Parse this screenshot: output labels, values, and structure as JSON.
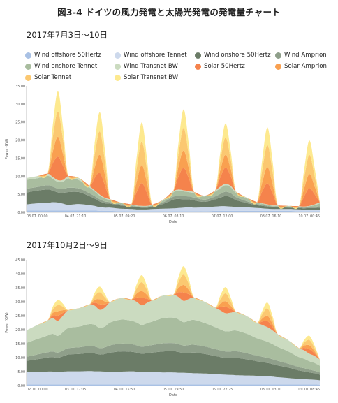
{
  "title": "図3-4  ドイツの風力発電と太陽光発電の発電量チャート",
  "legend": [
    {
      "name": "Wind offshore 50Hertz",
      "color": "#a9c1e4"
    },
    {
      "name": "Wind offshore Tennet",
      "color": "#cdd9ec"
    },
    {
      "name": "Wind onshore 50Hertz",
      "color": "#6b7c67"
    },
    {
      "name": "Wind Amprion",
      "color": "#8f9f8a"
    },
    {
      "name": "Wind onshore Tennet",
      "color": "#a9bd9f"
    },
    {
      "name": "Wind Transnet BW",
      "color": "#cbdbc0"
    },
    {
      "name": "Solar 50Hertz",
      "color": "#f5834c"
    },
    {
      "name": "Solar Amprion",
      "color": "#f9a050"
    },
    {
      "name": "Solar Tennet",
      "color": "#fbc871"
    },
    {
      "name": "Solar Transnet BW",
      "color": "#fde98f"
    }
  ],
  "chart_data": [
    {
      "type": "area",
      "stacked": true,
      "subtitle": "2017年7月3日〜10日",
      "xlabel": "Date",
      "ylabel": "Power (GW)",
      "ylim": [
        0,
        35
      ],
      "yticks": [
        "0.00",
        "5.00",
        "10.00",
        "15.00",
        "20.00",
        "25.00",
        "30.00",
        "35.00"
      ],
      "xticks": [
        "03.07. 00:00",
        "04.07. 21:10",
        "05.07. 09:20",
        "06.07. 03:10",
        "07.07. 12:00",
        "08.07. 16:10",
        "10.07. 00:45"
      ],
      "x": [
        0,
        0.5,
        1,
        1.25,
        1.5,
        1.75,
        2,
        2.5,
        3,
        3.25,
        3.5,
        3.75,
        4,
        4.5,
        5,
        5.25,
        5.5,
        5.75,
        6,
        6.5,
        7,
        7.25,
        7.5,
        7.75,
        8,
        8.5,
        9,
        9.25,
        9.5,
        9.75,
        10,
        10.5,
        11,
        11.25,
        11.5,
        11.75,
        12,
        12.5,
        13,
        13.25,
        13.5,
        13.75,
        14
      ],
      "series": [
        {
          "name": "Wind offshore 50Hertz",
          "values": [
            0.5,
            0.5,
            0.5,
            0.5,
            0.5,
            0.5,
            0.5,
            0.5,
            0.5,
            0.5,
            0.4,
            0.4,
            0.4,
            0.3,
            0.3,
            0.3,
            0.3,
            0.3,
            0.3,
            0.3,
            0.3,
            0.3,
            0.3,
            0.3,
            0.3,
            0.3,
            0.4,
            0.4,
            0.4,
            0.4,
            0.4,
            0.4,
            0.4,
            0.4,
            0.4,
            0.4,
            0.4,
            0.4,
            0.3,
            0.3,
            0.3,
            0.3,
            0.3
          ]
        },
        {
          "name": "Wind offshore Tennet",
          "values": [
            1.7,
            2.0,
            2.1,
            2.3,
            2.2,
            1.9,
            1.6,
            1.8,
            1.5,
            1.3,
            1.0,
            0.9,
            0.9,
            0.7,
            0.6,
            0.5,
            0.5,
            0.5,
            0.6,
            0.7,
            0.8,
            0.9,
            1.0,
            1.1,
            1.0,
            1.1,
            1.2,
            1.3,
            1.3,
            1.2,
            1.1,
            1.0,
            0.8,
            0.7,
            0.6,
            0.5,
            0.5,
            0.5,
            0.5,
            0.4,
            0.4,
            0.4,
            0.4
          ]
        },
        {
          "name": "Wind onshore 50Hertz",
          "values": [
            3.3,
            3.5,
            3.7,
            3.2,
            2.8,
            3.0,
            3.5,
            3.3,
            2.5,
            2.0,
            1.6,
            1.2,
            1.1,
            0.9,
            0.7,
            0.6,
            0.5,
            0.5,
            0.7,
            1.3,
            2.4,
            2.5,
            2.3,
            2.2,
            2.0,
            1.5,
            2.0,
            2.4,
            2.8,
            2.6,
            1.9,
            1.2,
            0.8,
            0.7,
            0.6,
            0.5,
            0.5,
            0.4,
            0.4,
            0.4,
            0.5,
            0.5,
            0.6
          ]
        },
        {
          "name": "Wind Amprion",
          "values": [
            1.0,
            1.0,
            1.2,
            1.1,
            1.0,
            1.0,
            1.2,
            1.0,
            0.8,
            0.7,
            0.6,
            0.5,
            0.4,
            0.3,
            0.2,
            0.2,
            0.2,
            0.2,
            0.2,
            0.4,
            0.8,
            0.9,
            0.9,
            0.8,
            0.8,
            0.6,
            0.8,
            1.0,
            1.2,
            1.1,
            0.8,
            0.5,
            0.3,
            0.3,
            0.2,
            0.2,
            0.2,
            0.2,
            0.2,
            0.2,
            0.2,
            0.3,
            0.4
          ]
        },
        {
          "name": "Wind onshore Tennet",
          "values": [
            2.5,
            2.4,
            2.6,
            2.2,
            1.9,
            2.1,
            2.6,
            2.3,
            1.6,
            1.3,
            1.0,
            0.8,
            0.6,
            0.4,
            0.3,
            0.2,
            0.2,
            0.2,
            0.2,
            0.5,
            1.2,
            1.4,
            1.3,
            1.2,
            1.2,
            0.9,
            1.3,
            1.6,
            1.8,
            1.6,
            1.2,
            0.8,
            0.4,
            0.3,
            0.3,
            0.2,
            0.2,
            0.2,
            0.2,
            0.2,
            0.3,
            0.5,
            0.8
          ]
        },
        {
          "name": "Wind Transnet BW",
          "values": [
            0.5,
            0.6,
            0.6,
            0.5,
            0.5,
            0.5,
            0.6,
            0.6,
            0.4,
            0.3,
            0.3,
            0.2,
            0.2,
            0.1,
            0.1,
            0.1,
            0.1,
            0.1,
            0.1,
            0.2,
            0.3,
            0.3,
            0.3,
            0.3,
            0.3,
            0.2,
            0.3,
            0.4,
            0.4,
            0.4,
            0.3,
            0.2,
            0.1,
            0.1,
            0.1,
            0.1,
            0.1,
            0.1,
            0.1,
            0.1,
            0.1,
            0.2,
            0.3
          ]
        },
        {
          "name": "Solar 50Hertz",
          "values": [
            0,
            0,
            0,
            3.8,
            6.5,
            3.8,
            0,
            0,
            0,
            3.4,
            6.0,
            3.4,
            0,
            0,
            0,
            3.6,
            6.3,
            3.6,
            0,
            0,
            0,
            3.5,
            6.2,
            3.5,
            0,
            0,
            0,
            2.6,
            4.5,
            2.6,
            0,
            0,
            0,
            3.3,
            5.8,
            3.3,
            0,
            0,
            0,
            2.8,
            4.9,
            2.8,
            0
          ]
        },
        {
          "name": "Solar Amprion",
          "values": [
            0,
            0,
            0,
            3.1,
            5.5,
            3.1,
            0,
            0,
            0,
            2.8,
            5.0,
            2.8,
            0,
            0,
            0,
            2.8,
            5.0,
            2.8,
            0,
            0,
            0,
            2.7,
            4.8,
            2.7,
            0,
            0,
            0,
            2.0,
            3.5,
            2.0,
            0,
            0,
            0,
            2.5,
            4.5,
            2.5,
            0,
            0,
            0,
            2.2,
            3.9,
            2.2,
            0
          ]
        },
        {
          "name": "Solar Tennet",
          "values": [
            0,
            0,
            0,
            3.9,
            7.0,
            3.9,
            0,
            0,
            0,
            3.6,
            6.5,
            3.6,
            0,
            0,
            0,
            3.6,
            6.5,
            3.6,
            0,
            0,
            0,
            3.5,
            6.3,
            3.5,
            0,
            0,
            0,
            2.6,
            4.8,
            2.6,
            0,
            0,
            0,
            3.4,
            6.1,
            3.4,
            0,
            0,
            0,
            2.9,
            5.3,
            2.9,
            0
          ]
        },
        {
          "name": "Solar Transnet BW",
          "values": [
            0,
            0,
            0,
            3.3,
            5.6,
            3.3,
            0,
            0,
            0,
            3.0,
            5.3,
            3.0,
            0,
            0,
            0,
            3.0,
            5.3,
            3.0,
            0,
            0,
            0,
            3.0,
            5.1,
            3.0,
            0,
            0,
            0,
            2.3,
            3.9,
            2.3,
            0,
            0,
            0,
            2.8,
            4.9,
            2.8,
            0,
            0,
            0,
            2.3,
            4.0,
            2.3,
            0
          ]
        }
      ]
    },
    {
      "type": "area",
      "stacked": true,
      "subtitle": "2017年10月2日〜9日",
      "xlabel": "Date",
      "ylabel": "Power (GW)",
      "ylim": [
        0,
        45
      ],
      "yticks": [
        "0.00",
        "5.00",
        "10.00",
        "15.00",
        "20.00",
        "25.00",
        "30.00",
        "35.00",
        "40.00",
        "45.00"
      ],
      "xticks": [
        "02.10. 00:00",
        "03.10. 12:05",
        "04.10. 15:50",
        "05.10. 19:50",
        "06.10. 22:25",
        "08.10. 03:10",
        "09.10. 08:45"
      ],
      "x": [
        0,
        0.5,
        1,
        1.25,
        1.5,
        1.75,
        2,
        2.5,
        3,
        3.25,
        3.5,
        3.75,
        4,
        4.5,
        5,
        5.25,
        5.5,
        5.75,
        6,
        6.5,
        7,
        7.25,
        7.5,
        7.75,
        8,
        8.5,
        9,
        9.25,
        9.5,
        9.75,
        10,
        10.5,
        11,
        11.25,
        11.5,
        11.75,
        12,
        12.5,
        13,
        13.25,
        13.5,
        13.75,
        14
      ],
      "series": [
        {
          "name": "Wind offshore 50Hertz",
          "values": [
            0.4,
            0.4,
            0.4,
            0.4,
            0.4,
            0.4,
            0.4,
            0.4,
            0.4,
            0.4,
            0.4,
            0.4,
            0.4,
            0.4,
            0.4,
            0.4,
            0.4,
            0.4,
            0.4,
            0.4,
            0.4,
            0.4,
            0.4,
            0.4,
            0.4,
            0.4,
            0.4,
            0.4,
            0.4,
            0.4,
            0.4,
            0.4,
            0.4,
            0.4,
            0.4,
            0.4,
            0.4,
            0.4,
            0.4,
            0.4,
            0.4,
            0.4,
            0.3
          ]
        },
        {
          "name": "Wind offshore Tennet",
          "values": [
            4.4,
            4.5,
            4.6,
            4.6,
            4.5,
            4.6,
            4.7,
            4.7,
            4.8,
            4.7,
            4.7,
            4.6,
            4.6,
            4.6,
            4.7,
            4.6,
            4.5,
            4.4,
            4.4,
            4.3,
            4.3,
            4.2,
            4.2,
            4.1,
            4.0,
            3.9,
            3.7,
            3.6,
            3.5,
            3.4,
            3.3,
            3.2,
            3.1,
            3.0,
            2.9,
            2.8,
            2.6,
            2.3,
            2.0,
            1.9,
            1.8,
            1.7,
            1.6
          ]
        },
        {
          "name": "Wind onshore 50Hertz",
          "values": [
            4.0,
            4.5,
            5.0,
            5.2,
            5.0,
            5.5,
            6.0,
            6.2,
            6.5,
            6.4,
            6.0,
            6.3,
            6.8,
            7.2,
            7.0,
            6.8,
            6.5,
            6.8,
            7.0,
            7.5,
            7.6,
            7.4,
            7.0,
            7.2,
            7.4,
            7.0,
            6.5,
            6.2,
            6.0,
            6.1,
            6.2,
            5.8,
            5.2,
            5.0,
            4.8,
            4.5,
            4.2,
            3.7,
            3.0,
            2.8,
            2.5,
            2.3,
            2.0
          ]
        },
        {
          "name": "Wind Amprion",
          "values": [
            1.5,
            1.7,
            1.9,
            2.0,
            1.9,
            2.1,
            2.3,
            2.4,
            2.5,
            2.5,
            2.3,
            2.4,
            2.6,
            2.8,
            2.7,
            2.6,
            2.5,
            2.6,
            2.7,
            2.9,
            2.9,
            2.8,
            2.7,
            2.8,
            2.8,
            2.7,
            2.5,
            2.4,
            2.3,
            2.3,
            2.4,
            2.2,
            2.0,
            1.9,
            1.8,
            1.7,
            1.6,
            1.4,
            1.2,
            1.1,
            1.0,
            0.9,
            0.8
          ]
        },
        {
          "name": "Wind onshore Tennet",
          "values": [
            5.0,
            5.5,
            6.0,
            6.3,
            6.0,
            6.6,
            7.2,
            7.4,
            7.8,
            7.7,
            7.2,
            7.5,
            8.2,
            8.6,
            8.4,
            8.2,
            7.8,
            8.1,
            8.4,
            9.0,
            9.1,
            8.9,
            8.4,
            8.7,
            8.9,
            8.4,
            7.8,
            7.5,
            7.2,
            7.3,
            7.4,
            7.0,
            6.2,
            6.0,
            5.8,
            5.4,
            5.0,
            4.4,
            3.6,
            3.4,
            3.0,
            2.8,
            2.4
          ]
        },
        {
          "name": "Wind Transnet BW",
          "values": [
            4.5,
            5.0,
            5.4,
            5.6,
            5.4,
            5.9,
            6.4,
            6.6,
            7.0,
            6.9,
            6.5,
            6.8,
            7.3,
            7.7,
            7.6,
            7.4,
            7.0,
            7.3,
            7.6,
            8.1,
            8.2,
            8.0,
            7.6,
            7.8,
            8.0,
            7.6,
            7.0,
            6.8,
            6.5,
            6.6,
            6.7,
            6.3,
            5.6,
            5.4,
            5.2,
            4.9,
            4.5,
            4.0,
            3.2,
            3.0,
            2.7,
            2.5,
            2.2
          ]
        },
        {
          "name": "Solar 50Hertz",
          "values": [
            0,
            0,
            0,
            1.0,
            1.8,
            1.0,
            0,
            0,
            0,
            1.1,
            2.0,
            1.1,
            0,
            0,
            0,
            1.5,
            2.7,
            1.5,
            0,
            0,
            0,
            1.7,
            3.0,
            1.7,
            0,
            0,
            0,
            1.3,
            2.3,
            1.3,
            0,
            0,
            0,
            1.2,
            2.2,
            1.2,
            0,
            0,
            0,
            0.9,
            1.6,
            0.9,
            0
          ]
        },
        {
          "name": "Solar Amprion",
          "values": [
            0,
            0,
            0,
            0.9,
            1.6,
            0.9,
            0,
            0,
            0,
            1.0,
            1.8,
            1.0,
            0,
            0,
            0,
            1.4,
            2.4,
            1.4,
            0,
            0,
            0,
            1.5,
            2.7,
            1.5,
            0,
            0,
            0,
            1.1,
            2.0,
            1.1,
            0,
            0,
            0,
            1.1,
            1.9,
            1.1,
            0,
            0,
            0,
            0.8,
            1.4,
            0.8,
            0
          ]
        },
        {
          "name": "Solar Tennet",
          "values": [
            0,
            0,
            0,
            1.2,
            2.2,
            1.2,
            0,
            0,
            0,
            1.4,
            2.5,
            1.4,
            0,
            0,
            0,
            1.8,
            3.2,
            1.8,
            0,
            0,
            0,
            2.1,
            3.7,
            2.1,
            0,
            0,
            0,
            1.6,
            2.8,
            1.6,
            0,
            0,
            0,
            1.5,
            2.6,
            1.5,
            0,
            0,
            0,
            1.1,
            1.9,
            1.1,
            0
          ]
        },
        {
          "name": "Solar Transnet BW",
          "values": [
            0,
            0,
            0,
            1.0,
            1.8,
            1.0,
            0,
            0,
            0,
            1.1,
            2.0,
            1.1,
            0,
            0,
            0,
            1.4,
            2.5,
            1.4,
            0,
            0,
            0,
            1.7,
            3.0,
            1.7,
            0,
            0,
            0,
            1.3,
            2.2,
            1.3,
            0,
            0,
            0,
            1.2,
            2.1,
            1.2,
            0,
            0,
            0,
            0.9,
            1.5,
            0.9,
            0
          ]
        }
      ]
    }
  ]
}
